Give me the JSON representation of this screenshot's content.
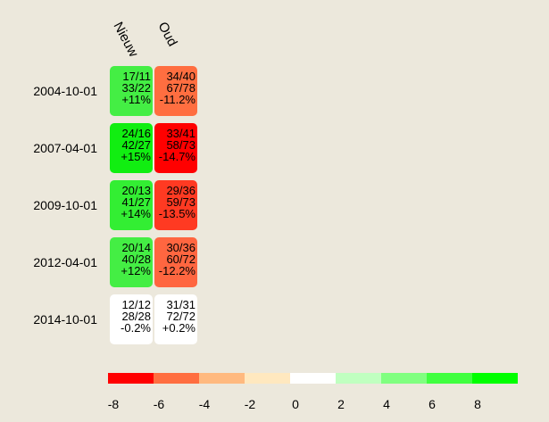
{
  "chart_data": {
    "type": "heatmap",
    "columns": [
      "Nieuw",
      "Oud"
    ],
    "rows": [
      "2004-10-01",
      "2007-04-01",
      "2009-10-01",
      "2012-04-01",
      "2014-10-01"
    ],
    "cells": [
      [
        {
          "line1": "17/11",
          "line2": "33/22",
          "line3": "+11%",
          "value": 11,
          "color": "#44ee44"
        },
        {
          "line1": "34/40",
          "line2": "67/78",
          "line3": "-11.2%",
          "value": -11.2,
          "color": "#ff6e40"
        }
      ],
      [
        {
          "line1": "24/16",
          "line2": "42/27",
          "line3": "+15%",
          "value": 15,
          "color": "#11ee11"
        },
        {
          "line1": "33/41",
          "line2": "58/73",
          "line3": "-14.7%",
          "value": -14.7,
          "color": "#ff0000"
        }
      ],
      [
        {
          "line1": "20/13",
          "line2": "41/27",
          "line3": "+14%",
          "value": 14,
          "color": "#33ee33"
        },
        {
          "line1": "29/36",
          "line2": "59/73",
          "line3": "-13.5%",
          "value": -13.5,
          "color": "#ff3a22"
        }
      ],
      [
        {
          "line1": "20/14",
          "line2": "40/28",
          "line3": "+12%",
          "value": 12,
          "color": "#44ee44"
        },
        {
          "line1": "30/36",
          "line2": "60/72",
          "line3": "-12.2%",
          "value": -12.2,
          "color": "#ff6640"
        }
      ],
      [
        {
          "line1": "12/12",
          "line2": "28/28",
          "line3": "-0.2%",
          "value": -0.2,
          "color": "#ffffff"
        },
        {
          "line1": "31/31",
          "line2": "72/72",
          "line3": "+0.2%",
          "value": 0.2,
          "color": "#ffffff"
        }
      ]
    ],
    "legend": {
      "ticks": [
        "-8",
        "-6",
        "-4",
        "-2",
        "0",
        "2",
        "4",
        "6",
        "8"
      ],
      "colors": [
        "#ff0000",
        "#ff6e40",
        "#ffb97f",
        "#ffe8bf",
        "#ffffff",
        "#c0ffc0",
        "#80ff80",
        "#40ff40",
        "#00ff00"
      ]
    }
  }
}
